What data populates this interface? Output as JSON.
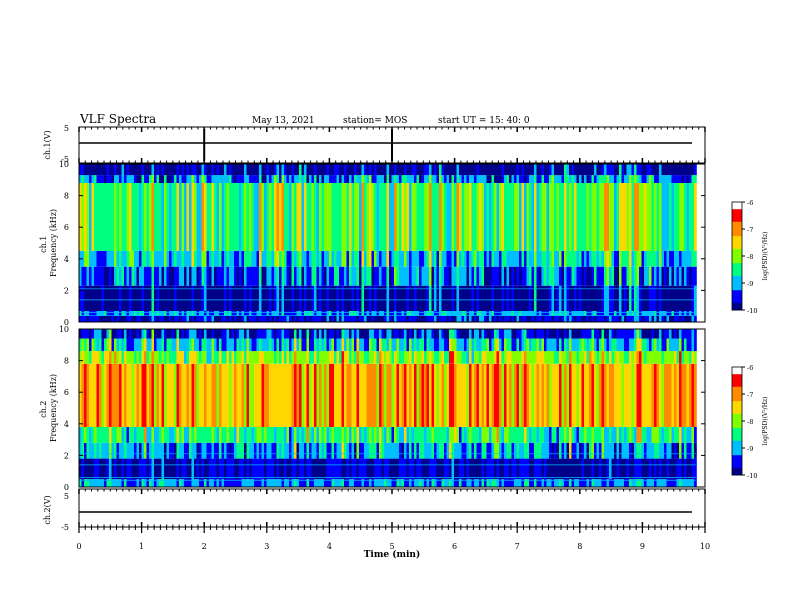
{
  "header": {
    "title": "VLF Spectra",
    "date": "May 13, 2021",
    "station": "station= MOS",
    "start": "start  UT =   15: 40: 0"
  },
  "chart_data": [
    {
      "type": "line",
      "panel": "ch1-waveform",
      "ylabel": "ch.1(V)",
      "ylim": [
        -5,
        5
      ],
      "yticks": [
        "5",
        "-5"
      ],
      "series": [
        {
          "values": [
            0,
            0
          ]
        }
      ],
      "spikes_min": [
        2.0,
        5.0
      ]
    },
    {
      "type": "heatmap",
      "panel": "ch1-spectrogram",
      "ylabel": "ch.1\nFrequency (kHz)",
      "ylim": [
        0,
        10
      ],
      "yticks": [
        "0",
        "2",
        "4",
        "6",
        "8",
        "10"
      ],
      "colorbar": {
        "label": "log(PSD)(V²/Hz)",
        "range": [
          -10,
          -6
        ],
        "ticks": [
          "-6",
          "-7",
          "-8",
          "-9",
          "-10"
        ]
      },
      "bands": [
        {
          "fmin": 0.0,
          "fmax": 0.4,
          "level": -9.6
        },
        {
          "fmin": 0.4,
          "fmax": 0.7,
          "level": -9.0
        },
        {
          "fmin": 0.7,
          "fmax": 2.3,
          "level": -10.0
        },
        {
          "fmin": 2.3,
          "fmax": 3.5,
          "level": -9.3
        },
        {
          "fmin": 3.5,
          "fmax": 4.5,
          "level": -8.8
        },
        {
          "fmin": 4.5,
          "fmax": 8.8,
          "level": -8.1
        },
        {
          "fmin": 8.8,
          "fmax": 9.3,
          "level": -9.2
        },
        {
          "fmin": 9.3,
          "fmax": 10.0,
          "level": -10.0
        }
      ]
    },
    {
      "type": "heatmap",
      "panel": "ch2-spectrogram",
      "ylabel": "ch.2\nFrequency (kHz)",
      "ylim": [
        0,
        10
      ],
      "yticks": [
        "0",
        "2",
        "4",
        "6",
        "8",
        "10"
      ],
      "colorbar": {
        "label": "log(PSD)(V²/Hz)",
        "range": [
          -10,
          -6
        ],
        "ticks": [
          "-6",
          "-7",
          "-8",
          "-9",
          "-10"
        ]
      },
      "bands": [
        {
          "fmin": 0.0,
          "fmax": 0.5,
          "level": -9.0
        },
        {
          "fmin": 0.5,
          "fmax": 1.8,
          "level": -9.8
        },
        {
          "fmin": 1.8,
          "fmax": 2.8,
          "level": -9.0
        },
        {
          "fmin": 2.8,
          "fmax": 3.8,
          "level": -8.3
        },
        {
          "fmin": 3.8,
          "fmax": 7.8,
          "level": -6.9
        },
        {
          "fmin": 7.8,
          "fmax": 8.6,
          "level": -7.7
        },
        {
          "fmin": 8.6,
          "fmax": 9.4,
          "level": -8.7
        },
        {
          "fmin": 9.4,
          "fmax": 10.0,
          "level": -9.6
        }
      ]
    },
    {
      "type": "line",
      "panel": "ch2-waveform",
      "ylabel": "ch.2(V)",
      "ylim": [
        -5,
        5
      ],
      "yticks": [
        "5",
        "-5"
      ],
      "series": [
        {
          "values": [
            0,
            0
          ]
        }
      ]
    }
  ],
  "xaxis": {
    "label": "Time (min)",
    "range": [
      0,
      10
    ],
    "data_end": 9.85,
    "ticks": [
      "0",
      "1",
      "2",
      "3",
      "4",
      "5",
      "6",
      "7",
      "8",
      "9",
      "10"
    ]
  },
  "colors": {
    "scale": [
      "#00008b",
      "#0000ff",
      "#00bfff",
      "#00ff7f",
      "#7fff00",
      "#ffd700",
      "#ff8c00",
      "#ff0000",
      "#ffffff"
    ]
  }
}
